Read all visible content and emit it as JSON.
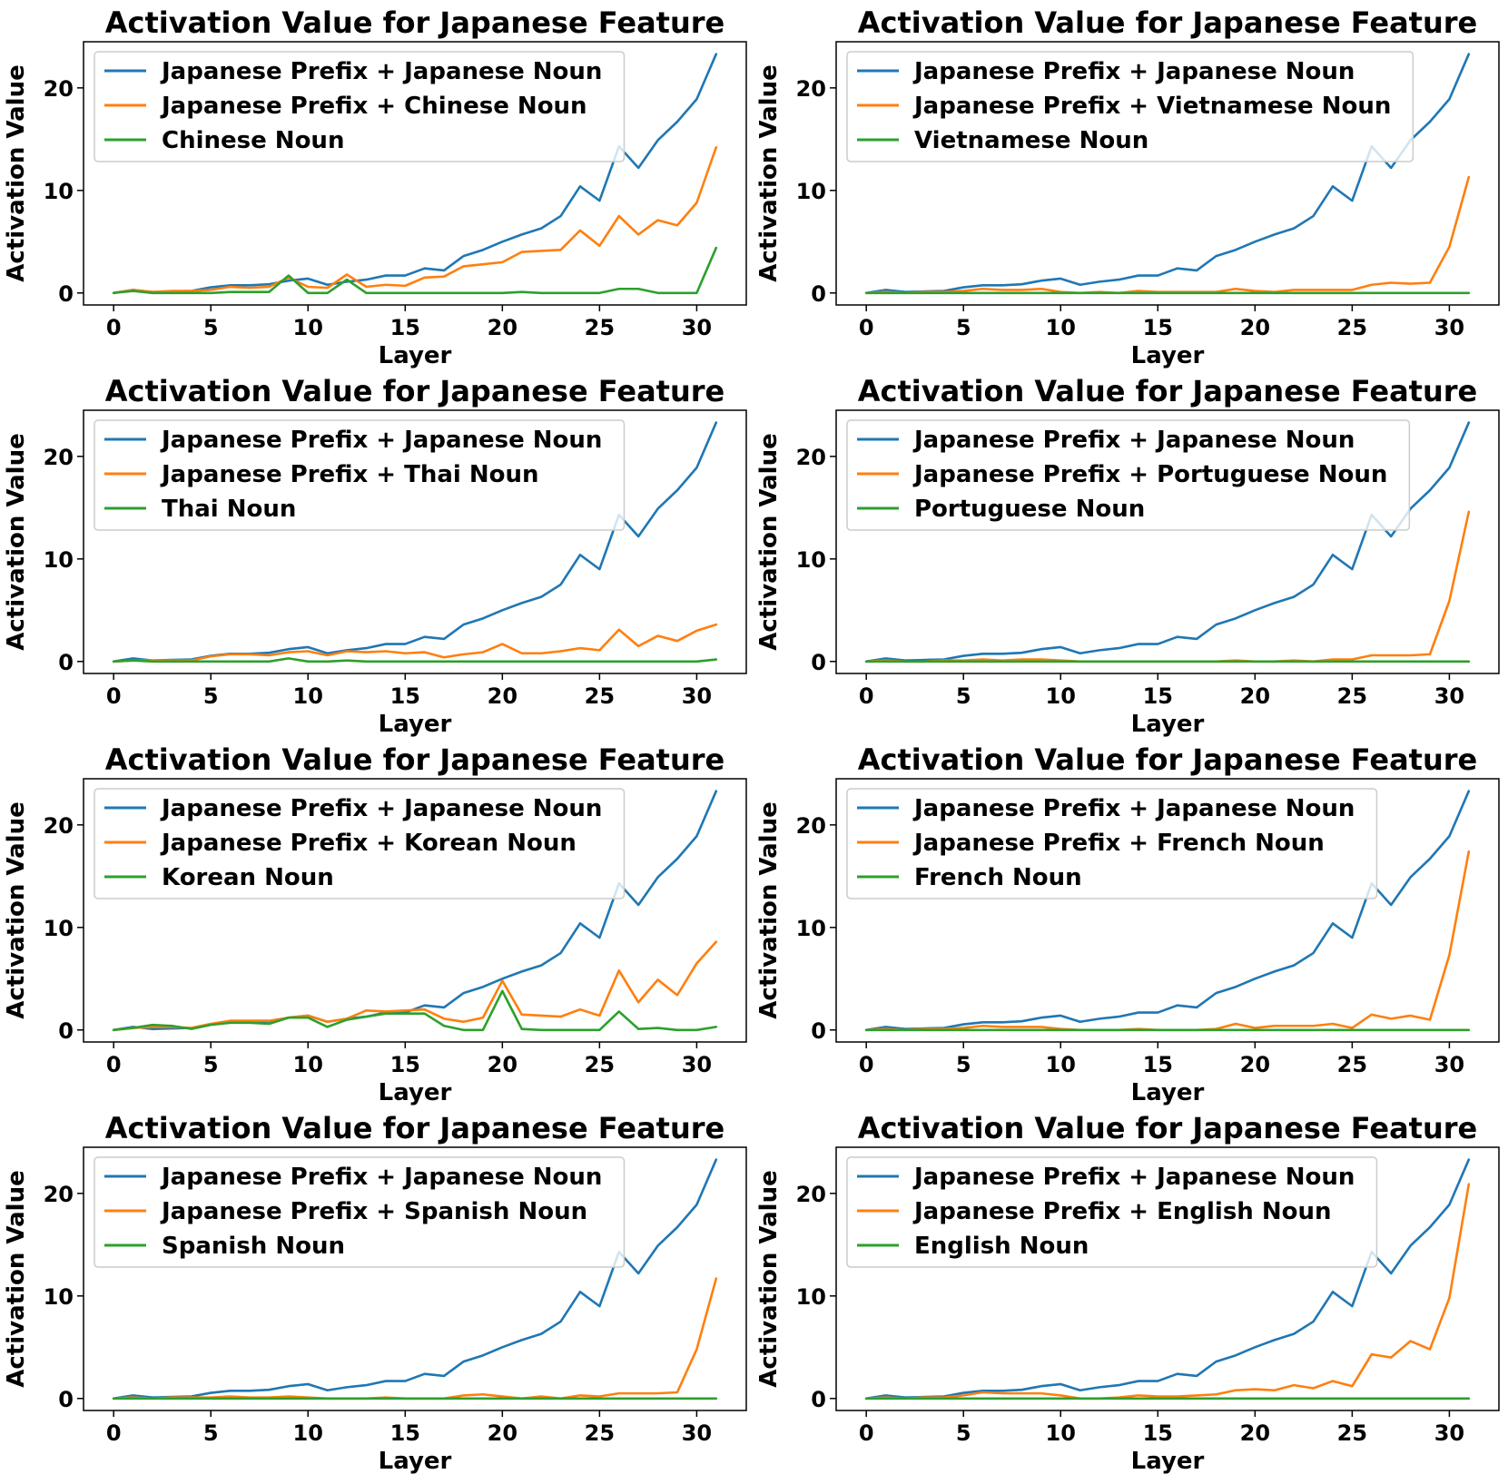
{
  "colors": {
    "japanese": "#1f77b4",
    "prefix_other": "#ff7f0e",
    "other": "#2ca02c"
  },
  "japanese_series": [
    0.0,
    0.3,
    0.1,
    0.15,
    0.2,
    0.55,
    0.75,
    0.75,
    0.85,
    1.2,
    1.4,
    0.8,
    1.1,
    1.3,
    1.7,
    1.7,
    2.4,
    2.2,
    3.6,
    4.2,
    5.0,
    5.7,
    6.3,
    7.5,
    10.4,
    9.0,
    14.3,
    12.2,
    14.9,
    16.7,
    18.9,
    23.3
  ],
  "chart_data": [
    {
      "type": "line",
      "title": "Activation Value for Japanese Feature",
      "xlabel": "Layer",
      "ylabel": "Activation Value",
      "xlim": [
        -1.55,
        32.55
      ],
      "ylim": [
        -1.17,
        24.5
      ],
      "xticks": [
        0,
        5,
        10,
        15,
        20,
        25,
        30
      ],
      "yticks": [
        0,
        10,
        20
      ],
      "legend_position": "upper-left",
      "series": [
        {
          "name": "Japanese Prefix + Japanese Noun",
          "values": "japanese"
        },
        {
          "name": "Japanese Prefix + Chinese Noun",
          "values": [
            0.0,
            0.3,
            0.1,
            0.2,
            0.2,
            0.3,
            0.6,
            0.5,
            0.6,
            1.5,
            0.6,
            0.5,
            1.8,
            0.6,
            0.8,
            0.7,
            1.5,
            1.6,
            2.6,
            2.8,
            3.0,
            4.0,
            4.1,
            4.2,
            6.1,
            4.6,
            7.5,
            5.7,
            7.1,
            6.6,
            8.8,
            14.2
          ]
        },
        {
          "name": "Chinese Noun",
          "values": [
            0.0,
            0.2,
            0.0,
            0.0,
            0.0,
            0.0,
            0.1,
            0.1,
            0.1,
            1.7,
            0.0,
            0.0,
            1.3,
            0.0,
            0.0,
            0.0,
            0.0,
            0.0,
            0.0,
            0.0,
            0.0,
            0.1,
            0.0,
            0.0,
            0.0,
            0.0,
            0.4,
            0.4,
            0.0,
            0.0,
            0.0,
            4.4
          ]
        }
      ]
    },
    {
      "type": "line",
      "title": "Activation Value for Japanese Feature",
      "xlabel": "Layer",
      "ylabel": "Activation Value",
      "xlim": [
        -1.55,
        32.55
      ],
      "ylim": [
        -1.17,
        24.5
      ],
      "xticks": [
        0,
        5,
        10,
        15,
        20,
        25,
        30
      ],
      "yticks": [
        0,
        10,
        20
      ],
      "legend_position": "upper-left",
      "series": [
        {
          "name": "Japanese Prefix + Japanese Noun",
          "values": "japanese"
        },
        {
          "name": "Japanese Prefix + Vietnamese Noun",
          "values": [
            0.0,
            0.1,
            0.0,
            0.1,
            0.1,
            0.2,
            0.4,
            0.3,
            0.3,
            0.4,
            0.1,
            0.0,
            0.1,
            0.0,
            0.2,
            0.1,
            0.1,
            0.1,
            0.1,
            0.4,
            0.2,
            0.1,
            0.3,
            0.3,
            0.3,
            0.3,
            0.8,
            1.0,
            0.9,
            1.0,
            4.5,
            11.3
          ]
        },
        {
          "name": "Vietnamese Noun",
          "values": [
            0.0,
            0.0,
            0.0,
            0.0,
            0.0,
            0.0,
            0.0,
            0.0,
            0.0,
            0.0,
            0.0,
            0.0,
            0.0,
            0.0,
            0.0,
            0.0,
            0.0,
            0.0,
            0.0,
            0.0,
            0.0,
            0.0,
            0.0,
            0.0,
            0.0,
            0.0,
            0.0,
            0.0,
            0.0,
            0.0,
            0.0,
            0.0
          ]
        }
      ]
    },
    {
      "type": "line",
      "title": "Activation Value for Japanese Feature",
      "xlabel": "Layer",
      "ylabel": "Activation Value",
      "xlim": [
        -1.55,
        32.55
      ],
      "ylim": [
        -1.17,
        24.5
      ],
      "xticks": [
        0,
        5,
        10,
        15,
        20,
        25,
        30
      ],
      "yticks": [
        0,
        10,
        20
      ],
      "legend_position": "upper-left",
      "series": [
        {
          "name": "Japanese Prefix + Japanese Noun",
          "values": "japanese"
        },
        {
          "name": "Japanese Prefix + Thai Noun",
          "values": [
            0.0,
            0.1,
            0.1,
            0.1,
            0.1,
            0.5,
            0.7,
            0.7,
            0.6,
            0.9,
            1.0,
            0.6,
            1.0,
            0.9,
            1.0,
            0.8,
            0.9,
            0.4,
            0.7,
            0.9,
            1.7,
            0.8,
            0.8,
            1.0,
            1.3,
            1.1,
            3.1,
            1.5,
            2.5,
            2.0,
            3.0,
            3.6
          ]
        },
        {
          "name": "Thai Noun",
          "values": [
            0.0,
            0.1,
            0.0,
            0.0,
            0.0,
            0.0,
            0.0,
            0.0,
            0.0,
            0.3,
            0.0,
            0.0,
            0.1,
            0.0,
            0.0,
            0.0,
            0.0,
            0.0,
            0.0,
            0.0,
            0.0,
            0.0,
            0.0,
            0.0,
            0.0,
            0.0,
            0.0,
            0.0,
            0.0,
            0.0,
            0.0,
            0.2
          ]
        }
      ]
    },
    {
      "type": "line",
      "title": "Activation Value for Japanese Feature",
      "xlabel": "Layer",
      "ylabel": "Activation Value",
      "xlim": [
        -1.55,
        32.55
      ],
      "ylim": [
        -1.17,
        24.5
      ],
      "xticks": [
        0,
        5,
        10,
        15,
        20,
        25,
        30
      ],
      "yticks": [
        0,
        10,
        20
      ],
      "legend_position": "upper-left",
      "series": [
        {
          "name": "Japanese Prefix + Japanese Noun",
          "values": "japanese"
        },
        {
          "name": "Japanese Prefix + Portuguese Noun",
          "values": [
            0.0,
            0.1,
            0.0,
            0.0,
            0.1,
            0.1,
            0.2,
            0.1,
            0.2,
            0.2,
            0.1,
            0.0,
            0.0,
            0.0,
            0.0,
            0.0,
            0.0,
            0.0,
            0.0,
            0.1,
            0.0,
            0.0,
            0.1,
            0.0,
            0.2,
            0.2,
            0.6,
            0.6,
            0.6,
            0.7,
            5.9,
            14.6
          ]
        },
        {
          "name": "Portuguese Noun",
          "values": [
            0.0,
            0.0,
            0.0,
            0.0,
            0.0,
            0.0,
            0.0,
            0.0,
            0.0,
            0.0,
            0.0,
            0.0,
            0.0,
            0.0,
            0.0,
            0.0,
            0.0,
            0.0,
            0.0,
            0.0,
            0.0,
            0.0,
            0.0,
            0.0,
            0.0,
            0.0,
            0.0,
            0.0,
            0.0,
            0.0,
            0.0,
            0.0
          ]
        }
      ]
    },
    {
      "type": "line",
      "title": "Activation Value for Japanese Feature",
      "xlabel": "Layer",
      "ylabel": "Activation Value",
      "xlim": [
        -1.55,
        32.55
      ],
      "ylim": [
        -1.17,
        24.5
      ],
      "xticks": [
        0,
        5,
        10,
        15,
        20,
        25,
        30
      ],
      "yticks": [
        0,
        10,
        20
      ],
      "legend_position": "upper-left",
      "series": [
        {
          "name": "Japanese Prefix + Japanese Noun",
          "values": "japanese"
        },
        {
          "name": "Japanese Prefix + Korean Noun",
          "values": [
            0.0,
            0.2,
            0.3,
            0.3,
            0.2,
            0.6,
            0.9,
            0.9,
            0.9,
            1.2,
            1.4,
            0.8,
            1.1,
            1.9,
            1.8,
            1.9,
            2.0,
            1.1,
            0.8,
            1.2,
            4.8,
            1.5,
            1.4,
            1.3,
            2.0,
            1.4,
            5.8,
            2.7,
            4.9,
            3.4,
            6.5,
            8.6
          ]
        },
        {
          "name": "Korean Noun",
          "values": [
            0.0,
            0.2,
            0.5,
            0.4,
            0.1,
            0.5,
            0.7,
            0.7,
            0.6,
            1.2,
            1.2,
            0.3,
            1.0,
            1.3,
            1.6,
            1.6,
            1.6,
            0.4,
            0.0,
            0.0,
            3.8,
            0.1,
            0.0,
            0.0,
            0.0,
            0.0,
            1.8,
            0.1,
            0.2,
            0.0,
            0.0,
            0.3
          ]
        }
      ]
    },
    {
      "type": "line",
      "title": "Activation Value for Japanese Feature",
      "xlabel": "Layer",
      "ylabel": "Activation Value",
      "xlim": [
        -1.55,
        32.55
      ],
      "ylim": [
        -1.17,
        24.5
      ],
      "xticks": [
        0,
        5,
        10,
        15,
        20,
        25,
        30
      ],
      "yticks": [
        0,
        10,
        20
      ],
      "legend_position": "upper-left",
      "series": [
        {
          "name": "Japanese Prefix + Japanese Noun",
          "values": "japanese"
        },
        {
          "name": "Japanese Prefix + French Noun",
          "values": [
            0.0,
            0.1,
            0.0,
            0.1,
            0.1,
            0.2,
            0.4,
            0.3,
            0.3,
            0.3,
            0.1,
            0.0,
            0.0,
            0.0,
            0.1,
            0.0,
            0.0,
            0.0,
            0.1,
            0.6,
            0.2,
            0.4,
            0.4,
            0.4,
            0.6,
            0.2,
            1.5,
            1.1,
            1.4,
            1.0,
            7.3,
            17.4
          ]
        },
        {
          "name": "French Noun",
          "values": [
            0.0,
            0.0,
            0.0,
            0.0,
            0.0,
            0.0,
            0.0,
            0.0,
            0.0,
            0.0,
            0.0,
            0.0,
            0.0,
            0.0,
            0.0,
            0.0,
            0.0,
            0.0,
            0.0,
            0.0,
            0.0,
            0.0,
            0.0,
            0.0,
            0.0,
            0.0,
            0.0,
            0.0,
            0.0,
            0.0,
            0.0,
            0.0
          ]
        }
      ]
    },
    {
      "type": "line",
      "title": "Activation Value for Japanese Feature",
      "xlabel": "Layer",
      "ylabel": "Activation Value",
      "xlim": [
        -1.55,
        32.55
      ],
      "ylim": [
        -1.17,
        24.5
      ],
      "xticks": [
        0,
        5,
        10,
        15,
        20,
        25,
        30
      ],
      "yticks": [
        0,
        10,
        20
      ],
      "legend_position": "upper-left",
      "series": [
        {
          "name": "Japanese Prefix + Japanese Noun",
          "values": "japanese"
        },
        {
          "name": "Japanese Prefix + Spanish Noun",
          "values": [
            0.0,
            0.1,
            0.0,
            0.1,
            0.1,
            0.1,
            0.2,
            0.1,
            0.1,
            0.2,
            0.1,
            0.0,
            0.0,
            0.0,
            0.1,
            0.0,
            0.0,
            0.0,
            0.3,
            0.4,
            0.2,
            0.0,
            0.2,
            0.0,
            0.3,
            0.2,
            0.5,
            0.5,
            0.5,
            0.6,
            4.8,
            11.7
          ]
        },
        {
          "name": "Spanish Noun",
          "values": [
            0.0,
            0.0,
            0.0,
            0.0,
            0.0,
            0.0,
            0.0,
            0.0,
            0.0,
            0.0,
            0.0,
            0.0,
            0.0,
            0.0,
            0.0,
            0.0,
            0.0,
            0.0,
            0.0,
            0.0,
            0.0,
            0.0,
            0.0,
            0.0,
            0.0,
            0.0,
            0.0,
            0.0,
            0.0,
            0.0,
            0.0,
            0.0
          ]
        }
      ]
    },
    {
      "type": "line",
      "title": "Activation Value for Japanese Feature",
      "xlabel": "Layer",
      "ylabel": "Activation Value",
      "xlim": [
        -1.55,
        32.55
      ],
      "ylim": [
        -1.17,
        24.5
      ],
      "xticks": [
        0,
        5,
        10,
        15,
        20,
        25,
        30
      ],
      "yticks": [
        0,
        10,
        20
      ],
      "legend_position": "upper-left",
      "series": [
        {
          "name": "Japanese Prefix + Japanese Noun",
          "values": "japanese"
        },
        {
          "name": "Japanese Prefix + English Noun",
          "values": [
            0.0,
            0.1,
            0.0,
            0.1,
            0.1,
            0.3,
            0.6,
            0.5,
            0.5,
            0.5,
            0.3,
            0.0,
            0.0,
            0.1,
            0.3,
            0.2,
            0.2,
            0.3,
            0.4,
            0.8,
            0.9,
            0.8,
            1.3,
            1.0,
            1.7,
            1.2,
            4.3,
            4.0,
            5.6,
            4.8,
            9.8,
            20.9
          ]
        },
        {
          "name": "English Noun",
          "values": [
            0.0,
            0.0,
            0.0,
            0.0,
            0.0,
            0.0,
            0.0,
            0.0,
            0.0,
            0.0,
            0.0,
            0.0,
            0.0,
            0.0,
            0.0,
            0.0,
            0.0,
            0.0,
            0.0,
            0.0,
            0.0,
            0.0,
            0.0,
            0.0,
            0.0,
            0.0,
            0.0,
            0.0,
            0.0,
            0.0,
            0.0,
            0.0
          ]
        }
      ]
    }
  ]
}
